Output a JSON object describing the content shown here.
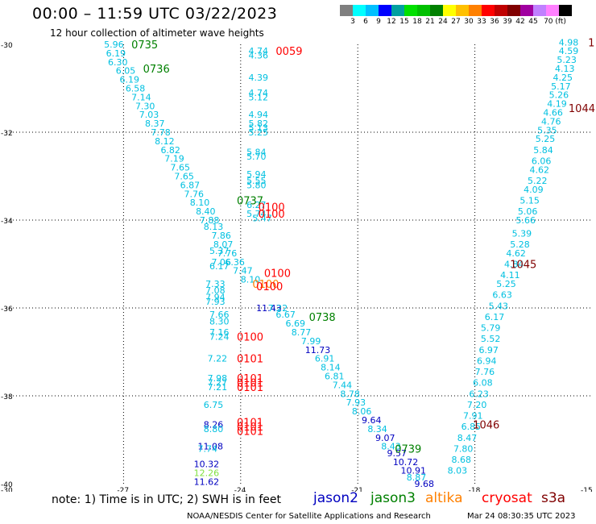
{
  "title": "00:00 – 11:59 UTC 03/22/2023",
  "subtitle": "12 hour collection of altimeter wave heights",
  "colorbar": {
    "colors": [
      "#7f7f7f",
      "#00ffff",
      "#00c0ff",
      "#0000ff",
      "#00a0a0",
      "#00e000",
      "#00c000",
      "#008000",
      "#ffff00",
      "#ffc000",
      "#ff8000",
      "#ff0000",
      "#c00000",
      "#800000",
      "#a000a0",
      "#c080ff",
      "#ff80ff",
      "#000000"
    ],
    "labels": [
      "3",
      "6",
      "9",
      "12",
      "15",
      "18",
      "21",
      "24",
      "27",
      "30",
      "33",
      "36",
      "39",
      "42",
      "45",
      "70 (ft)"
    ]
  },
  "axes": {
    "lat_ticks": [
      "-30",
      "-32",
      "-34",
      "-36",
      "-38",
      "-40"
    ],
    "lon_ticks": [
      "-30",
      "-27",
      "-24",
      "-21",
      "-18",
      "-15"
    ]
  },
  "satellite_colors": {
    "jason2": "#0000c0",
    "jason3": "#008000",
    "altika": "#ff8000",
    "cryosat": "#ff0000",
    "s3a": "#800000",
    "cyan": "#00c0e0",
    "lime": "#80e040"
  },
  "observations": [
    {
      "text": "5.96",
      "c": "cyan",
      "lon": -27.5,
      "lat": -30.0
    },
    {
      "text": "6.19",
      "c": "cyan",
      "lon": -27.45,
      "lat": -30.2
    },
    {
      "text": "6.30",
      "c": "cyan",
      "lon": -27.4,
      "lat": -30.4
    },
    {
      "text": "6.05",
      "c": "cyan",
      "lon": -27.2,
      "lat": -30.6
    },
    {
      "text": "6.19",
      "c": "cyan",
      "lon": -27.1,
      "lat": -30.8
    },
    {
      "text": "6.58",
      "c": "cyan",
      "lon": -26.95,
      "lat": -31.0
    },
    {
      "text": "7.14",
      "c": "cyan",
      "lon": -26.8,
      "lat": -31.2
    },
    {
      "text": "7.30",
      "c": "cyan",
      "lon": -26.7,
      "lat": -31.4
    },
    {
      "text": "7.03",
      "c": "cyan",
      "lon": -26.6,
      "lat": -31.6
    },
    {
      "text": "8.37",
      "c": "cyan",
      "lon": -26.45,
      "lat": -31.8
    },
    {
      "text": "7.78",
      "c": "cyan",
      "lon": -26.3,
      "lat": -32.0
    },
    {
      "text": "8.12",
      "c": "cyan",
      "lon": -26.2,
      "lat": -32.2
    },
    {
      "text": "6.82",
      "c": "cyan",
      "lon": -26.05,
      "lat": -32.4
    },
    {
      "text": "7.19",
      "c": "cyan",
      "lon": -25.95,
      "lat": -32.6
    },
    {
      "text": "7.65",
      "c": "cyan",
      "lon": -25.8,
      "lat": -32.8
    },
    {
      "text": "7.65",
      "c": "cyan",
      "lon": -25.7,
      "lat": -33.0
    },
    {
      "text": "6.87",
      "c": "cyan",
      "lon": -25.55,
      "lat": -33.2
    },
    {
      "text": "7.76",
      "c": "cyan",
      "lon": -25.45,
      "lat": -33.4
    },
    {
      "text": "8.10",
      "c": "cyan",
      "lon": -25.3,
      "lat": -33.6
    },
    {
      "text": "8.40",
      "c": "cyan",
      "lon": -25.15,
      "lat": -33.8
    },
    {
      "text": "7.88",
      "c": "cyan",
      "lon": -25.05,
      "lat": -34.0
    },
    {
      "text": "8.13",
      "c": "cyan",
      "lon": -24.95,
      "lat": -34.15
    },
    {
      "text": "7.86",
      "c": "cyan",
      "lon": -24.75,
      "lat": -34.35
    },
    {
      "text": "8.07",
      "c": "cyan",
      "lon": -24.7,
      "lat": -34.55
    },
    {
      "text": "5.37",
      "c": "cyan",
      "lon": -24.8,
      "lat": -34.7
    },
    {
      "text": "7.76",
      "c": "cyan",
      "lon": -24.6,
      "lat": -34.75
    },
    {
      "text": "7.06",
      "c": "cyan",
      "lon": -24.75,
      "lat": -34.95
    },
    {
      "text": "6.36",
      "c": "cyan",
      "lon": -24.4,
      "lat": -34.95
    },
    {
      "text": "6.17",
      "c": "cyan",
      "lon": -24.8,
      "lat": -35.05
    },
    {
      "text": "7.47",
      "c": "cyan",
      "lon": -24.2,
      "lat": -35.15
    },
    {
      "text": "8.10",
      "c": "cyan",
      "lon": -24.0,
      "lat": -35.35
    },
    {
      "text": "7.33",
      "c": "cyan",
      "lon": -24.9,
      "lat": -35.45
    },
    {
      "text": "7.08",
      "c": "cyan",
      "lon": -24.9,
      "lat": -35.6
    },
    {
      "text": "7.94",
      "c": "cyan",
      "lon": -24.9,
      "lat": -35.75
    },
    {
      "text": "7.93",
      "c": "cyan",
      "lon": -24.9,
      "lat": -35.85
    },
    {
      "text": "11.43",
      "c": "jason2",
      "lon": -23.6,
      "lat": -36.0
    },
    {
      "text": "4.74",
      "c": "cyan",
      "lon": -23.8,
      "lat": -30.15
    },
    {
      "text": "4.36",
      "c": "cyan",
      "lon": -23.8,
      "lat": -30.25
    },
    {
      "text": "4.39",
      "c": "cyan",
      "lon": -23.8,
      "lat": -30.75
    },
    {
      "text": "4.74",
      "c": "cyan",
      "lon": -23.8,
      "lat": -31.1
    },
    {
      "text": "5.12",
      "c": "cyan",
      "lon": -23.8,
      "lat": -31.2
    },
    {
      "text": "4.94",
      "c": "cyan",
      "lon": -23.8,
      "lat": -31.6
    },
    {
      "text": "5.82",
      "c": "cyan",
      "lon": -23.8,
      "lat": -31.8
    },
    {
      "text": "5.13",
      "c": "cyan",
      "lon": -23.8,
      "lat": -31.9
    },
    {
      "text": "5.25",
      "c": "cyan",
      "lon": -23.8,
      "lat": -32.0
    },
    {
      "text": "5.84",
      "c": "cyan",
      "lon": -23.85,
      "lat": -32.45
    },
    {
      "text": "5.70",
      "c": "cyan",
      "lon": -23.85,
      "lat": -32.55
    },
    {
      "text": "5.94",
      "c": "cyan",
      "lon": -23.85,
      "lat": -32.95
    },
    {
      "text": "5.55",
      "c": "cyan",
      "lon": -23.85,
      "lat": -33.1
    },
    {
      "text": "5.80",
      "c": "cyan",
      "lon": -23.85,
      "lat": -33.2
    },
    {
      "text": "6.27",
      "c": "cyan",
      "lon": -23.85,
      "lat": -33.65
    },
    {
      "text": "5.74",
      "c": "cyan",
      "lon": -23.85,
      "lat": -33.85
    },
    {
      "text": "5.47",
      "c": "cyan",
      "lon": -23.7,
      "lat": -33.95
    },
    {
      "text": "7.22",
      "c": "cyan",
      "lon": -23.3,
      "lat": -36.0
    },
    {
      "text": "6.67",
      "c": "cyan",
      "lon": -23.1,
      "lat": -36.15
    },
    {
      "text": "6.69",
      "c": "cyan",
      "lon": -22.85,
      "lat": -36.35
    },
    {
      "text": "8.77",
      "c": "cyan",
      "lon": -22.7,
      "lat": -36.55
    },
    {
      "text": "7.99",
      "c": "cyan",
      "lon": -22.45,
      "lat": -36.75
    },
    {
      "text": "11.73",
      "c": "jason2",
      "lon": -22.35,
      "lat": -36.95
    },
    {
      "text": "6.91",
      "c": "cyan",
      "lon": -22.1,
      "lat": -37.15
    },
    {
      "text": "8.14",
      "c": "cyan",
      "lon": -21.95,
      "lat": -37.35
    },
    {
      "text": "6.81",
      "c": "cyan",
      "lon": -21.85,
      "lat": -37.55
    },
    {
      "text": "7.44",
      "c": "cyan",
      "lon": -21.65,
      "lat": -37.75
    },
    {
      "text": "8.78",
      "c": "cyan",
      "lon": -21.45,
      "lat": -37.95
    },
    {
      "text": "7.93",
      "c": "cyan",
      "lon": -21.3,
      "lat": -38.15
    },
    {
      "text": "8.06",
      "c": "cyan",
      "lon": -21.15,
      "lat": -38.35
    },
    {
      "text": "9.64",
      "c": "jason2",
      "lon": -20.9,
      "lat": -38.55
    },
    {
      "text": "8.34",
      "c": "cyan",
      "lon": -20.75,
      "lat": -38.75
    },
    {
      "text": "9.07",
      "c": "jason2",
      "lon": -20.55,
      "lat": -38.95
    },
    {
      "text": "8.43",
      "c": "cyan",
      "lon": -20.4,
      "lat": -39.15
    },
    {
      "text": "9.57",
      "c": "jason2",
      "lon": -20.25,
      "lat": -39.3
    },
    {
      "text": "10.72",
      "c": "jason2",
      "lon": -20.1,
      "lat": -39.5
    },
    {
      "text": "10.91",
      "c": "jason2",
      "lon": -19.9,
      "lat": -39.7
    },
    {
      "text": "8.87",
      "c": "cyan",
      "lon": -19.75,
      "lat": -39.85
    },
    {
      "text": "9.68",
      "c": "jason2",
      "lon": -19.55,
      "lat": -40.0
    },
    {
      "text": "7.66",
      "c": "cyan",
      "lon": -24.8,
      "lat": -36.15
    },
    {
      "text": "8.30",
      "c": "cyan",
      "lon": -24.8,
      "lat": -36.3
    },
    {
      "text": "7.16",
      "c": "cyan",
      "lon": -24.8,
      "lat": -36.55
    },
    {
      "text": "7.24",
      "c": "cyan",
      "lon": -24.8,
      "lat": -36.65
    },
    {
      "text": "7.22",
      "c": "cyan",
      "lon": -24.85,
      "lat": -37.15
    },
    {
      "text": "7.98",
      "c": "cyan",
      "lon": -24.85,
      "lat": -37.6
    },
    {
      "text": "7.27",
      "c": "cyan",
      "lon": -24.85,
      "lat": -37.7
    },
    {
      "text": "7.21",
      "c": "cyan",
      "lon": -24.85,
      "lat": -37.8
    },
    {
      "text": "6.75",
      "c": "cyan",
      "lon": -24.95,
      "lat": -38.2
    },
    {
      "text": "8.26",
      "c": "jason2",
      "lon": -24.95,
      "lat": -38.65
    },
    {
      "text": "8.80",
      "c": "cyan",
      "lon": -24.95,
      "lat": -38.75
    },
    {
      "text": "11.08",
      "c": "jason2",
      "lon": -25.1,
      "lat": -39.15
    },
    {
      "text": "7.74",
      "c": "cyan",
      "lon": -25.1,
      "lat": -39.2
    },
    {
      "text": "10.32",
      "c": "jason2",
      "lon": -25.2,
      "lat": -39.55
    },
    {
      "text": "12.26",
      "c": "lime",
      "lon": -25.2,
      "lat": -39.75
    },
    {
      "text": "11.62",
      "c": "jason2",
      "lon": -25.2,
      "lat": -39.95
    },
    {
      "text": "4.98",
      "c": "cyan",
      "lon": -15.85,
      "lat": -29.95
    },
    {
      "text": "4.59",
      "c": "cyan",
      "lon": -15.85,
      "lat": -30.15
    },
    {
      "text": "5.23",
      "c": "cyan",
      "lon": -15.9,
      "lat": -30.35
    },
    {
      "text": "4.13",
      "c": "cyan",
      "lon": -15.95,
      "lat": -30.55
    },
    {
      "text": "4.25",
      "c": "cyan",
      "lon": -16.0,
      "lat": -30.75
    },
    {
      "text": "5.17",
      "c": "cyan",
      "lon": -16.05,
      "lat": -30.95
    },
    {
      "text": "5.26",
      "c": "cyan",
      "lon": -16.1,
      "lat": -31.15
    },
    {
      "text": "4.19",
      "c": "cyan",
      "lon": -16.15,
      "lat": -31.35
    },
    {
      "text": "4.66",
      "c": "cyan",
      "lon": -16.25,
      "lat": -31.55
    },
    {
      "text": "4.76",
      "c": "cyan",
      "lon": -16.3,
      "lat": -31.75
    },
    {
      "text": "5.35",
      "c": "cyan",
      "lon": -16.4,
      "lat": -31.95
    },
    {
      "text": "5.25",
      "c": "cyan",
      "lon": -16.45,
      "lat": -32.15
    },
    {
      "text": "5.84",
      "c": "cyan",
      "lon": -16.5,
      "lat": -32.4
    },
    {
      "text": "6.06",
      "c": "cyan",
      "lon": -16.55,
      "lat": -32.65
    },
    {
      "text": "4.62",
      "c": "cyan",
      "lon": -16.6,
      "lat": -32.85
    },
    {
      "text": "5.22",
      "c": "cyan",
      "lon": -16.65,
      "lat": -33.1
    },
    {
      "text": "4.09",
      "c": "cyan",
      "lon": -16.75,
      "lat": -33.3
    },
    {
      "text": "5.15",
      "c": "cyan",
      "lon": -16.85,
      "lat": -33.55
    },
    {
      "text": "5.06",
      "c": "cyan",
      "lon": -16.9,
      "lat": -33.8
    },
    {
      "text": "5.66",
      "c": "cyan",
      "lon": -16.95,
      "lat": -34.0
    },
    {
      "text": "5.39",
      "c": "cyan",
      "lon": -17.05,
      "lat": -34.3
    },
    {
      "text": "5.28",
      "c": "cyan",
      "lon": -17.1,
      "lat": -34.55
    },
    {
      "text": "4.62",
      "c": "cyan",
      "lon": -17.2,
      "lat": -34.75
    },
    {
      "text": "4.84",
      "c": "cyan",
      "lon": -17.25,
      "lat": -35.0
    },
    {
      "text": "4.11",
      "c": "cyan",
      "lon": -17.35,
      "lat": -35.25
    },
    {
      "text": "5.25",
      "c": "cyan",
      "lon": -17.45,
      "lat": -35.45
    },
    {
      "text": "6.63",
      "c": "cyan",
      "lon": -17.55,
      "lat": -35.7
    },
    {
      "text": "5.43",
      "c": "cyan",
      "lon": -17.65,
      "lat": -35.95
    },
    {
      "text": "6.17",
      "c": "cyan",
      "lon": -17.75,
      "lat": -36.2
    },
    {
      "text": "5.79",
      "c": "cyan",
      "lon": -17.85,
      "lat": -36.45
    },
    {
      "text": "5.52",
      "c": "cyan",
      "lon": -17.85,
      "lat": -36.7
    },
    {
      "text": "6.97",
      "c": "cyan",
      "lon": -17.9,
      "lat": -36.95
    },
    {
      "text": "6.94",
      "c": "cyan",
      "lon": -17.95,
      "lat": -37.2
    },
    {
      "text": "7.76",
      "c": "cyan",
      "lon": -18.0,
      "lat": -37.45
    },
    {
      "text": "6.08",
      "c": "cyan",
      "lon": -18.05,
      "lat": -37.7
    },
    {
      "text": "6.23",
      "c": "cyan",
      "lon": -18.15,
      "lat": -37.95
    },
    {
      "text": "7.20",
      "c": "cyan",
      "lon": -18.2,
      "lat": -38.2
    },
    {
      "text": "7.91",
      "c": "cyan",
      "lon": -18.3,
      "lat": -38.45
    },
    {
      "text": "6.85",
      "c": "cyan",
      "lon": -18.35,
      "lat": -38.7
    },
    {
      "text": "8.47",
      "c": "cyan",
      "lon": -18.45,
      "lat": -38.95
    },
    {
      "text": "7.80",
      "c": "cyan",
      "lon": -18.55,
      "lat": -39.2
    },
    {
      "text": "8.68",
      "c": "cyan",
      "lon": -18.6,
      "lat": -39.45
    },
    {
      "text": "8.03",
      "c": "cyan",
      "lon": -18.7,
      "lat": -39.7
    }
  ],
  "pass_times": [
    {
      "text": "0735",
      "c": "jason3",
      "lon": -26.8,
      "lat": -30.0
    },
    {
      "text": "0736",
      "c": "jason3",
      "lon": -26.5,
      "lat": -30.55
    },
    {
      "text": "0059",
      "c": "cryosat",
      "lon": -23.1,
      "lat": -30.15
    },
    {
      "text": "1",
      "c": "s3a",
      "lon": -15.1,
      "lat": -29.95
    },
    {
      "text": "1044",
      "c": "s3a",
      "lon": -15.6,
      "lat": -31.45
    },
    {
      "text": "0737",
      "c": "jason3",
      "lon": -24.1,
      "lat": -33.55
    },
    {
      "text": "0100",
      "c": "cryosat",
      "lon": -23.55,
      "lat": -33.7
    },
    {
      "text": "0100",
      "c": "cryosat",
      "lon": -23.55,
      "lat": -33.85
    },
    {
      "text": "0100",
      "c": "cryosat",
      "lon": -23.4,
      "lat": -35.2
    },
    {
      "text": "0100",
      "c": "altika",
      "lon": -23.7,
      "lat": -35.45
    },
    {
      "text": "0100",
      "c": "cryosat",
      "lon": -23.6,
      "lat": -35.5
    },
    {
      "text": "1045",
      "c": "s3a",
      "lon": -17.1,
      "lat": -35.0
    },
    {
      "text": "0738",
      "c": "jason3",
      "lon": -22.25,
      "lat": -36.2
    },
    {
      "text": "0100",
      "c": "cryosat",
      "lon": -24.1,
      "lat": -36.65
    },
    {
      "text": "0101",
      "c": "cryosat",
      "lon": -24.1,
      "lat": -37.15
    },
    {
      "text": "0101",
      "c": "cryosat",
      "lon": -24.1,
      "lat": -37.6
    },
    {
      "text": "0101",
      "c": "cryosat",
      "lon": -24.1,
      "lat": -37.7
    },
    {
      "text": "0101",
      "c": "cryosat",
      "lon": -24.1,
      "lat": -37.8
    },
    {
      "text": "0101",
      "c": "cryosat",
      "lon": -24.1,
      "lat": -38.6
    },
    {
      "text": "0101",
      "c": "cryosat",
      "lon": -24.1,
      "lat": -38.7
    },
    {
      "text": "0101",
      "c": "cryosat",
      "lon": -24.1,
      "lat": -38.8
    },
    {
      "text": "1046",
      "c": "s3a",
      "lon": -18.05,
      "lat": -38.65
    },
    {
      "text": "0739",
      "c": "jason3",
      "lon": -20.05,
      "lat": -39.2
    }
  ],
  "note": "note: 1) Time is in UTC; 2) SWH is in feet",
  "legend": [
    {
      "text": "jason2",
      "c": "jason2"
    },
    {
      "text": "jason3",
      "c": "jason3"
    },
    {
      "text": "altika",
      "c": "altika"
    },
    {
      "text": "cryosat",
      "c": "cryosat"
    },
    {
      "text": "s3a",
      "c": "s3a"
    }
  ],
  "credit": "NOAA/NESDIS Center for Satellite Applications and Research",
  "credit_time": "Mar 24 08:30:35 UTC 2023"
}
